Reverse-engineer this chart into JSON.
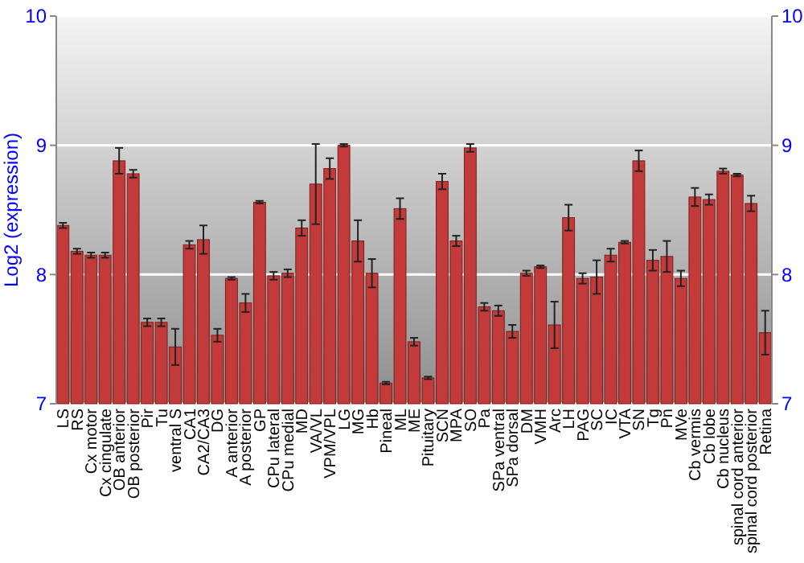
{
  "chart_data": {
    "type": "bar",
    "ylabel": "Log2 (expression)",
    "categories": [
      "LS",
      "RS",
      "Cx motor",
      "Cx cingulate",
      "OB anterior",
      "OB posterior",
      "Pir",
      "Tu",
      "ventral S",
      "CA1",
      "CA2/CA3",
      "DG",
      "A anterior",
      "A posterior",
      "GP",
      "CPu lateral",
      "CPu medial",
      "MD",
      "VA/VL",
      "VPM/VPL",
      "LG",
      "MG",
      "Hb",
      "Pineal",
      "ML",
      "ME",
      "Pituitary",
      "SCN",
      "MPA",
      "SO",
      "Pa",
      "SPa ventral",
      "SPa dorsal",
      "DM",
      "VMH",
      "Arc",
      "LH",
      "PAG",
      "SC",
      "IC",
      "VTA",
      "SN",
      "Tg",
      "Pn",
      "MVe",
      "Cb vermis",
      "Cb lobe",
      "Cb nucleus",
      "spinal cord anterior",
      "spinal cord posterior",
      "Retina"
    ],
    "values": [
      8.38,
      8.18,
      8.15,
      8.15,
      8.88,
      8.78,
      7.63,
      7.63,
      7.44,
      8.23,
      8.27,
      7.53,
      7.97,
      7.78,
      8.56,
      7.99,
      8.01,
      8.36,
      8.7,
      8.82,
      9.0,
      8.26,
      8.01,
      7.16,
      8.51,
      7.48,
      7.2,
      8.72,
      8.26,
      8.98,
      7.75,
      7.72,
      7.56,
      8.01,
      8.06,
      7.61,
      8.44,
      7.97,
      7.98,
      8.15,
      8.25,
      8.88,
      8.11,
      8.14,
      7.97,
      8.6,
      8.58,
      8.8,
      8.77,
      8.55,
      7.55
    ],
    "errors": [
      0.02,
      0.02,
      0.02,
      0.02,
      0.1,
      0.03,
      0.03,
      0.03,
      0.14,
      0.03,
      0.11,
      0.05,
      0.01,
      0.07,
      0.01,
      0.03,
      0.03,
      0.06,
      0.31,
      0.08,
      0.01,
      0.16,
      0.11,
      0.01,
      0.08,
      0.03,
      0.01,
      0.06,
      0.04,
      0.03,
      0.03,
      0.04,
      0.05,
      0.02,
      0.01,
      0.18,
      0.1,
      0.04,
      0.13,
      0.05,
      0.01,
      0.08,
      0.08,
      0.12,
      0.06,
      0.07,
      0.04,
      0.02,
      0.01,
      0.06,
      0.17
    ],
    "color": "#c23a3a",
    "ylim": [
      7,
      10
    ],
    "yticks": [
      7,
      8,
      9,
      10
    ],
    "y2lim": [
      7,
      10
    ],
    "y2ticks": [
      7,
      8,
      9,
      10
    ],
    "grid": "y"
  }
}
